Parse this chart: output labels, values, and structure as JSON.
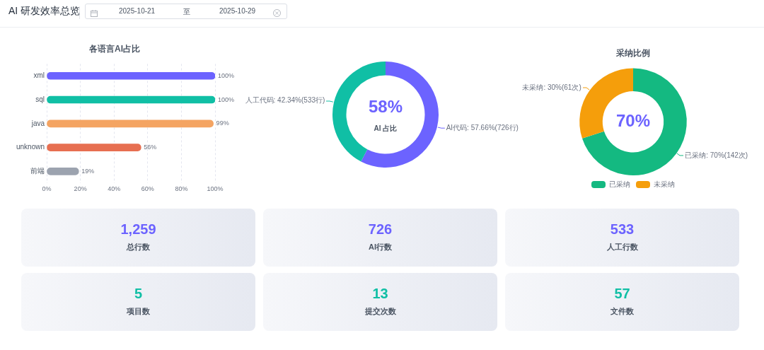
{
  "chart_data": [
    {
      "type": "other",
      "title": "AI 研发效率总览",
      "annotations": [
        "2025-10-21",
        "至",
        "2025-10-29"
      ]
    },
    {
      "type": "bar",
      "title": "各语言AI占比",
      "orientation": "horizontal",
      "categories": [
        "xml",
        "sql",
        "java",
        "unknown",
        "前端"
      ],
      "values": [
        100,
        100,
        99,
        56,
        19
      ],
      "colors": [
        "#6c63ff",
        "#10bfa5",
        "#f4a462",
        "#e76f51",
        "#9ca3af"
      ],
      "value_labels": [
        "100%",
        "100%",
        "99%",
        "56%",
        "19%"
      ],
      "xlim": [
        0,
        100
      ],
      "xticks": [
        {
          "value": 0,
          "label": "0%"
        },
        {
          "value": 20,
          "label": "20%"
        },
        {
          "value": 40,
          "label": "40%"
        },
        {
          "value": 60,
          "label": "60%"
        },
        {
          "value": 80,
          "label": "80%"
        },
        {
          "value": 100,
          "label": "100%"
        }
      ],
      "grid": "x",
      "legend": false
    },
    {
      "type": "donut",
      "categories": [
        "AI代码",
        "人工代码"
      ],
      "values": [
        726,
        533
      ],
      "colors": [
        "#6c63ff",
        "#10bfa5"
      ],
      "value_labels": [
        ": 57.66%(726行)",
        ": 42.34%(533行)"
      ],
      "annotations": [
        "58%",
        "AI 占比"
      ],
      "legend": false
    },
    {
      "type": "donut",
      "title": "采纳比例",
      "categories": [
        "已采纳",
        "未采纳"
      ],
      "values": [
        142,
        61
      ],
      "colors": [
        "#14b981",
        "#f59e0b"
      ],
      "value_labels": [
        ": 70%(142次)",
        ": 30%(61次)"
      ],
      "annotations": [
        "70%"
      ],
      "legend": "bottom"
    },
    {
      "type": "other",
      "annotations": [
        "1,259",
        "总行数",
        "726",
        "AI行数",
        "533",
        "人工行数",
        "5",
        "项目数",
        "13",
        "提交次数",
        "57",
        "文件数"
      ]
    }
  ]
}
